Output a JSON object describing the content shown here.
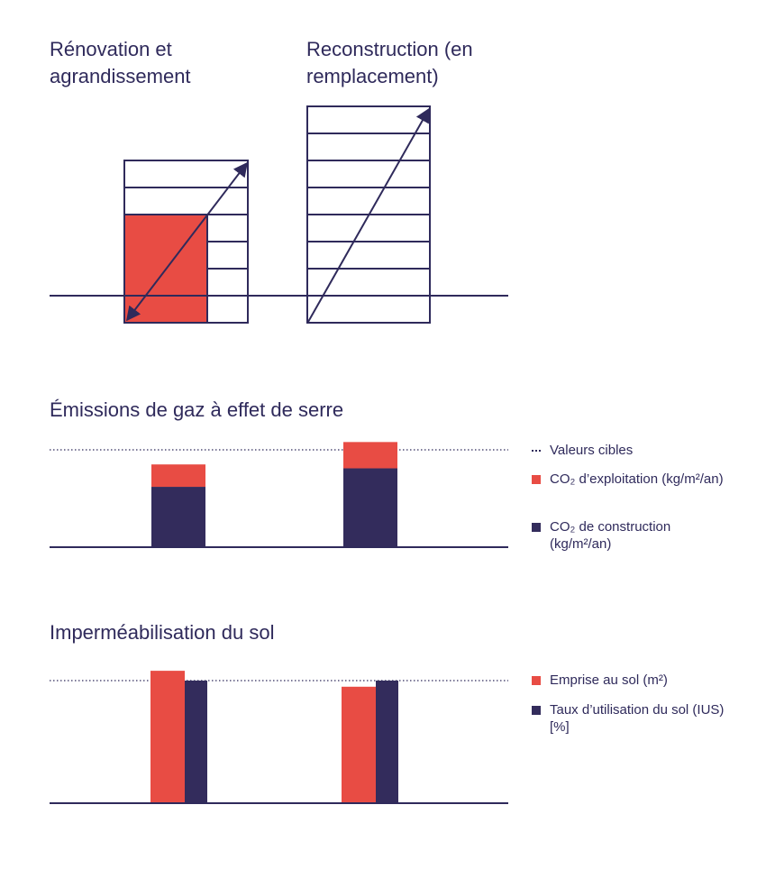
{
  "diagram": {
    "labels": [
      "Rénovation et agrandissement",
      "Reconstruction (en remplacement)"
    ]
  },
  "chart_data": [
    {
      "type": "bar",
      "stacked": true,
      "title": "Émissions de gaz à effet de serre",
      "categories": [
        null,
        null
      ],
      "series": [
        {
          "name": "CO₂ de construction (kg/m²/an)",
          "color": "#332c5c",
          "values": [
            62,
            81
          ]
        },
        {
          "name": "CO₂ d’exploitation (kg/m²/an)",
          "color": "#e84c44",
          "values": [
            23,
            27
          ]
        }
      ],
      "target": {
        "label": "Valeurs cibles",
        "value": 100
      },
      "ylim": [
        0,
        110
      ]
    },
    {
      "type": "bar",
      "stacked": false,
      "title": "Imperméabilisation du sol",
      "categories": [
        null,
        null
      ],
      "series": [
        {
          "name": "Emprise au sol (m²)",
          "color": "#e84c44",
          "values": [
            108,
            95
          ]
        },
        {
          "name": "Taux d’utilisation du sol (IUS) [%]",
          "color": "#332c5c",
          "values": [
            100,
            100
          ]
        }
      ],
      "target": {
        "value": 100
      },
      "ylim": [
        0,
        110
      ]
    }
  ]
}
